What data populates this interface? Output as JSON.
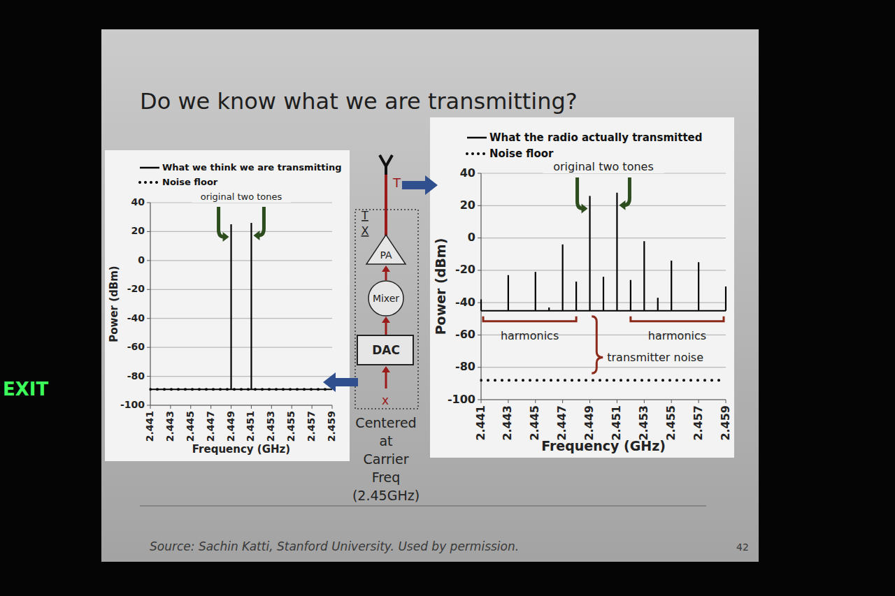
{
  "title": "Do we know what we are transmitting?",
  "exit_sign": "EXIT",
  "chart_data": [
    {
      "type": "stem",
      "xlabel": "Frequency (GHz)",
      "ylabel": "Power (dBm)",
      "xlim": [
        2.441,
        2.459
      ],
      "xticks": [
        2.441,
        2.443,
        2.445,
        2.447,
        2.449,
        2.451,
        2.453,
        2.455,
        2.457,
        2.459
      ],
      "ylim": [
        -100,
        40
      ],
      "yticks": [
        -100,
        -80,
        -60,
        -40,
        -20,
        0,
        20,
        40
      ],
      "grid": true,
      "legend": "top-left",
      "annotations": [
        "original two tones"
      ],
      "series": [
        {
          "name": "What we think we are transmitting",
          "type": "stem",
          "color": "#000000",
          "baseline": -89,
          "x": [
            2.449,
            2.451
          ],
          "values": [
            25,
            26
          ]
        },
        {
          "name": "Noise floor",
          "type": "line",
          "line_style": "dotted",
          "color": "#000000",
          "x": [
            2.441,
            2.459
          ],
          "values": [
            -89,
            -89
          ]
        }
      ]
    },
    {
      "type": "stem",
      "xlabel": "Frequency (GHz)",
      "ylabel": "Power (dBm)",
      "xlim": [
        2.441,
        2.459
      ],
      "xticks": [
        2.441,
        2.443,
        2.445,
        2.447,
        2.449,
        2.451,
        2.453,
        2.455,
        2.457,
        2.459
      ],
      "ylim": [
        -100,
        40
      ],
      "yticks": [
        -100,
        -80,
        -60,
        -40,
        -20,
        0,
        20,
        40
      ],
      "grid": true,
      "legend": "top-left",
      "annotations": [
        "original two tones",
        "harmonics",
        "harmonics",
        "transmitter noise"
      ],
      "series": [
        {
          "name": "What the radio actually transmitted",
          "type": "stem",
          "color": "#000000",
          "baseline": -45,
          "x": [
            2.441,
            2.443,
            2.445,
            2.446,
            2.447,
            2.448,
            2.449,
            2.45,
            2.451,
            2.452,
            2.453,
            2.454,
            2.455,
            2.457,
            2.459
          ],
          "values": [
            -38,
            -23,
            -21,
            -43,
            -4,
            -27,
            26,
            -24,
            28,
            -26,
            -2,
            -37,
            -14,
            -15,
            -30
          ]
        },
        {
          "name": "Noise floor",
          "type": "line",
          "line_style": "dotted",
          "color": "#000000",
          "x": [
            2.441,
            2.459
          ],
          "values": [
            -88,
            -88
          ]
        }
      ]
    }
  ],
  "diagram": {
    "antenna_label": "T",
    "tx_label": "TX",
    "blocks": [
      "PA",
      "Mixer",
      "DAC"
    ],
    "input_label": "x",
    "caption": [
      "Centered",
      "at",
      "Carrier",
      "Freq",
      "(2.45GHz)"
    ]
  },
  "footer": {
    "source": "Source: Sachin Katti, Stanford University.  Used by permission.",
    "page": "42"
  }
}
